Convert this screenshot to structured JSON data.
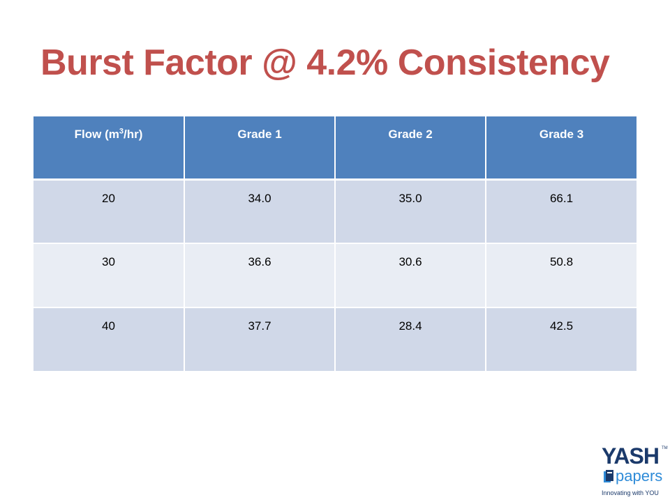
{
  "slide": {
    "title": "Burst Factor @ 4.2% Consistency"
  },
  "table": {
    "header": {
      "flow_prefix": "Flow (m",
      "flow_sup": "3",
      "flow_suffix": "/hr)",
      "grade1": "Grade 1",
      "grade2": "Grade 2",
      "grade3": "Grade 3"
    },
    "rows": [
      [
        "20",
        "34.0",
        "35.0",
        "66.1"
      ],
      [
        "30",
        "36.6",
        "30.6",
        "50.8"
      ],
      [
        "40",
        "37.7",
        "28.4",
        "42.5"
      ]
    ]
  },
  "logo": {
    "name": "YASH",
    "tm": "TM",
    "sub": "papers",
    "tagline": "Innovating with YOU"
  },
  "colors": {
    "title": "#c0504d",
    "header_bg": "#4f81bd",
    "row_dark": "#d0d8e8",
    "row_light": "#e9edf4",
    "logo_navy": "#1b3a6b",
    "logo_blue": "#2e8bd8"
  }
}
